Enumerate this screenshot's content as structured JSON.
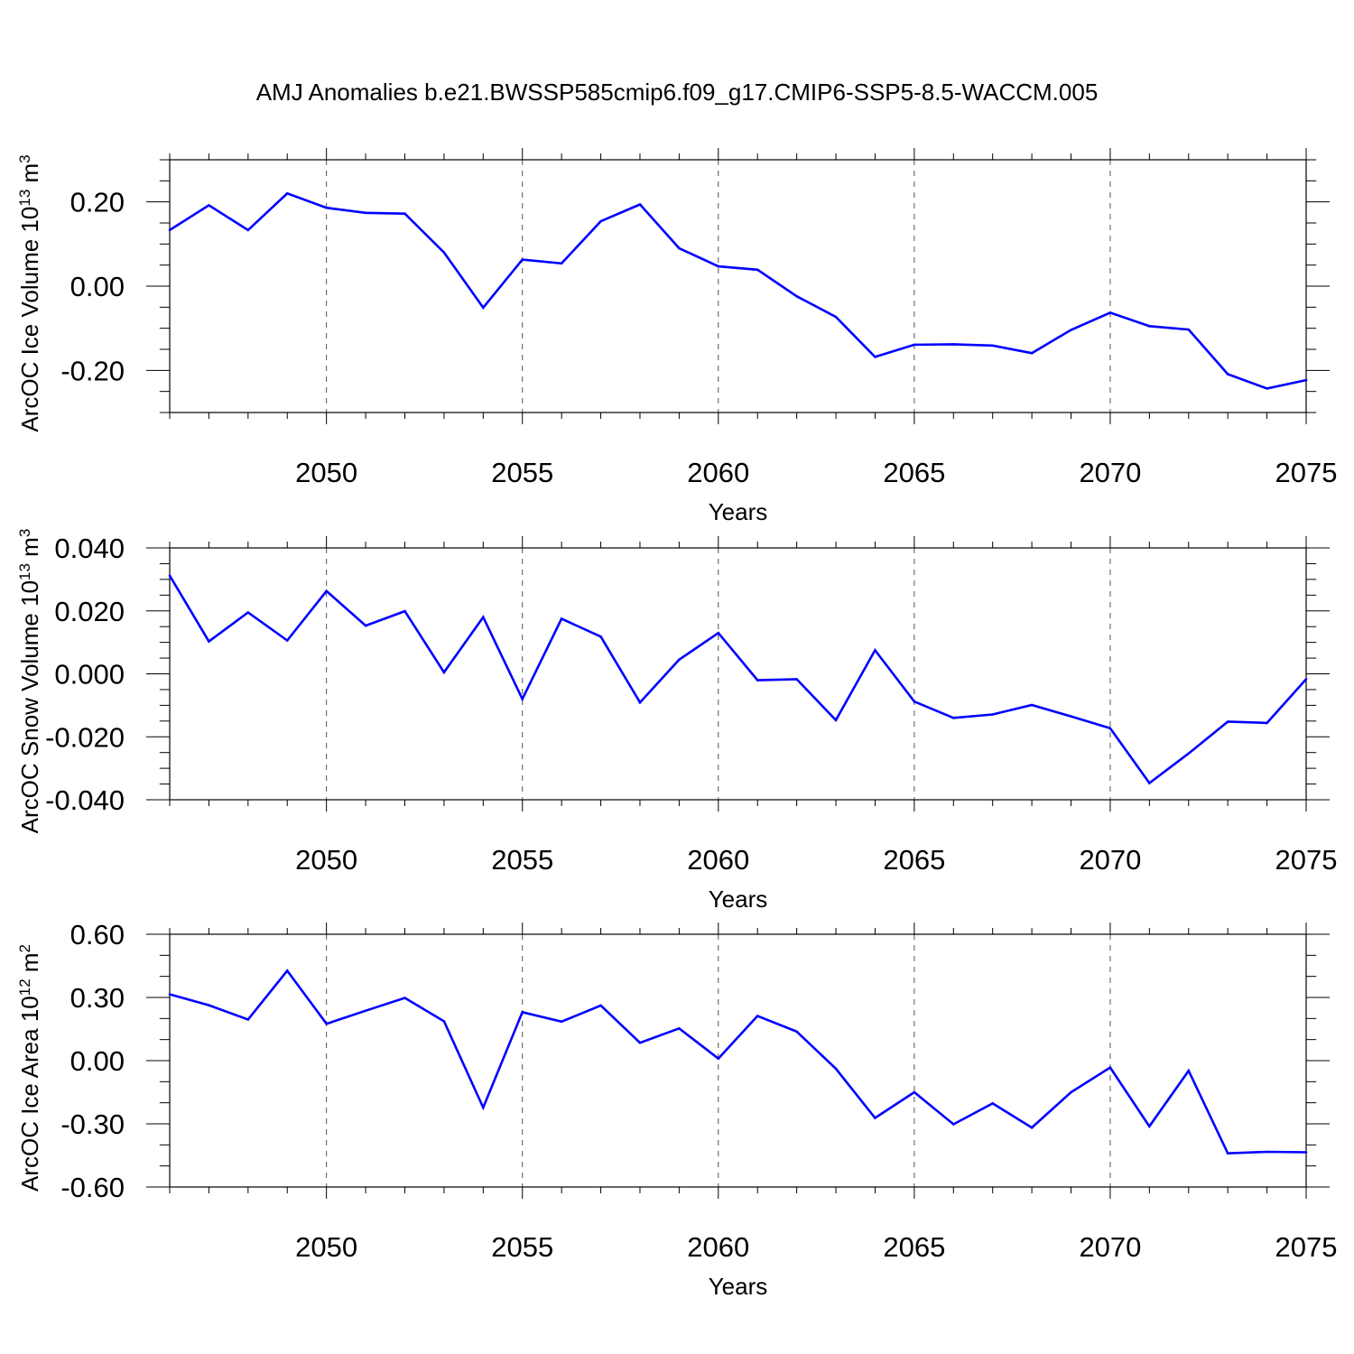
{
  "title": "AMJ Anomalies b.e21.BWSSP585cmip6.f09_g17.CMIP6-SSP5-8.5-WACCM.005",
  "colors": {
    "line": "#0000ff",
    "grid": "#555555",
    "axes": "#000000"
  },
  "chart_data": [
    {
      "type": "line",
      "title": "AMJ Anomalies b.e21.BWSSP585cmip6.f09_g17.CMIP6-SSP5-8.5-WACCM.005",
      "xlabel": "Years",
      "ylabel": {
        "text": "ArcOC Ice Volume 10",
        "sup1": "13",
        "mid": " m",
        "sup2": "3"
      },
      "xlim": [
        2046,
        2075
      ],
      "ylim": [
        -0.3,
        0.3
      ],
      "xticks": [
        2050,
        2055,
        2060,
        2065,
        2070,
        2075
      ],
      "xtick_labels": [
        "2050",
        "2055",
        "2060",
        "2065",
        "2070",
        "2075"
      ],
      "yticks": [
        0.2,
        0.0,
        -0.2
      ],
      "ytick_labels": [
        "0.20",
        "0.00",
        "-0.20"
      ],
      "ytick_minor_step": 0.05,
      "grid": "x-dashed",
      "x": [
        2046,
        2047,
        2048,
        2049,
        2050,
        2051,
        2052,
        2053,
        2054,
        2055,
        2056,
        2057,
        2058,
        2059,
        2060,
        2061,
        2062,
        2063,
        2064,
        2065,
        2066,
        2067,
        2068,
        2069,
        2070,
        2071,
        2072,
        2073,
        2074,
        2075
      ],
      "y": [
        0.133,
        0.192,
        0.133,
        0.22,
        0.186,
        0.174,
        0.172,
        0.08,
        -0.051,
        0.063,
        0.054,
        0.154,
        0.194,
        0.09,
        0.047,
        0.039,
        -0.024,
        -0.073,
        -0.168,
        -0.139,
        -0.138,
        -0.141,
        -0.159,
        -0.104,
        -0.063,
        -0.095,
        -0.103,
        -0.209,
        -0.243,
        -0.223
      ]
    },
    {
      "type": "line",
      "xlabel": "Years",
      "ylabel": {
        "text": "ArcOC Snow Volume 10",
        "sup1": "13",
        "mid": " m",
        "sup2": "3"
      },
      "xlim": [
        2046,
        2075
      ],
      "ylim": [
        -0.04,
        0.04
      ],
      "xticks": [
        2050,
        2055,
        2060,
        2065,
        2070,
        2075
      ],
      "xtick_labels": [
        "2050",
        "2055",
        "2060",
        "2065",
        "2070",
        "2075"
      ],
      "yticks": [
        0.04,
        0.02,
        0.0,
        -0.02,
        -0.04
      ],
      "ytick_labels": [
        "0.040",
        "0.020",
        "0.000",
        "-0.020",
        "-0.040"
      ],
      "ytick_minor_step": 0.005,
      "grid": "x-dashed",
      "x": [
        2046,
        2047,
        2048,
        2049,
        2050,
        2051,
        2052,
        2053,
        2054,
        2055,
        2056,
        2057,
        2058,
        2059,
        2060,
        2061,
        2062,
        2063,
        2064,
        2065,
        2066,
        2067,
        2068,
        2069,
        2070,
        2071,
        2072,
        2073,
        2074,
        2075
      ],
      "y": [
        0.0312,
        0.0103,
        0.0195,
        0.0106,
        0.0263,
        0.0153,
        0.0199,
        0.0005,
        0.018,
        -0.008,
        0.0175,
        0.0118,
        -0.0091,
        0.0045,
        0.013,
        -0.002,
        -0.0017,
        -0.0147,
        0.0075,
        -0.0088,
        -0.014,
        -0.0129,
        -0.0099,
        -0.0135,
        -0.0173,
        -0.0347,
        -0.0253,
        -0.0152,
        -0.0156,
        -0.0017
      ]
    },
    {
      "type": "line",
      "xlabel": "Years",
      "ylabel": {
        "text": "ArcOC Ice Area 10",
        "sup1": "12",
        "mid": " m",
        "sup2": "2"
      },
      "xlim": [
        2046,
        2075
      ],
      "ylim": [
        -0.6,
        0.6
      ],
      "xticks": [
        2050,
        2055,
        2060,
        2065,
        2070,
        2075
      ],
      "xtick_labels": [
        "2050",
        "2055",
        "2060",
        "2065",
        "2070",
        "2075"
      ],
      "yticks": [
        0.6,
        0.3,
        0.0,
        -0.3,
        -0.6
      ],
      "ytick_labels": [
        "0.60",
        "0.30",
        "0.00",
        "-0.30",
        "-0.60"
      ],
      "ytick_minor_step": 0.1,
      "grid": "x-dashed",
      "x": [
        2046,
        2047,
        2048,
        2049,
        2050,
        2051,
        2052,
        2053,
        2054,
        2055,
        2056,
        2057,
        2058,
        2059,
        2060,
        2061,
        2062,
        2063,
        2064,
        2065,
        2066,
        2067,
        2068,
        2069,
        2070,
        2071,
        2072,
        2073,
        2074,
        2075
      ],
      "y": [
        0.315,
        0.263,
        0.195,
        0.427,
        0.175,
        0.237,
        0.298,
        0.187,
        -0.223,
        0.23,
        0.185,
        0.262,
        0.085,
        0.153,
        0.01,
        0.212,
        0.138,
        -0.038,
        -0.272,
        -0.15,
        -0.302,
        -0.203,
        -0.318,
        -0.15,
        -0.033,
        -0.312,
        -0.048,
        -0.44,
        -0.433,
        -0.435
      ]
    }
  ]
}
